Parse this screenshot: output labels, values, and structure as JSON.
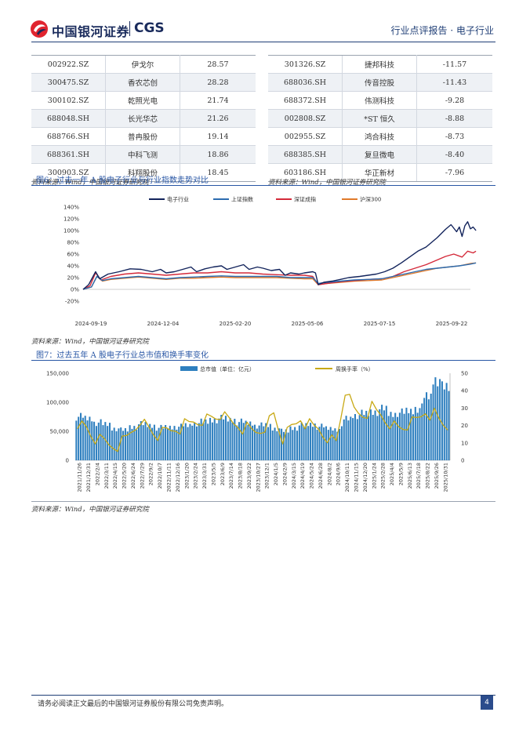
{
  "header": {
    "logo_cn": "中国银河证券",
    "logo_en": "CGS",
    "report_type": "行业点评报告 · 电子行业",
    "brand_color": "#1a2b5c",
    "accent_red": "#e0242f"
  },
  "table_left": {
    "rows": [
      [
        "002922.SZ",
        "伊戈尔",
        "28.57"
      ],
      [
        "300475.SZ",
        "香农芯创",
        "28.28"
      ],
      [
        "300102.SZ",
        "乾照光电",
        "21.74"
      ],
      [
        "688048.SH",
        "长光华芯",
        "21.26"
      ],
      [
        "688766.SH",
        "普冉股份",
        "19.14"
      ],
      [
        "688361.SH",
        "中科飞测",
        "18.86"
      ],
      [
        "300903.SZ",
        "科翔股份",
        "18.45"
      ]
    ]
  },
  "table_right": {
    "rows": [
      [
        "301326.SZ",
        "捷邦科技",
        "-11.57"
      ],
      [
        "688036.SH",
        "传音控股",
        "-11.43"
      ],
      [
        "688372.SH",
        "伟测科技",
        "-9.28"
      ],
      [
        "002808.SZ",
        "*ST 恒久",
        "-8.88"
      ],
      [
        "002955.SZ",
        "鸿合科技",
        "-8.73"
      ],
      [
        "688385.SH",
        "复旦微电",
        "-8.40"
      ],
      [
        "603186.SH",
        "华正新材",
        "-7.96"
      ]
    ]
  },
  "source_note": "资料来源：Wind，中国银河证券研究院",
  "fig6": {
    "title": "图6：过去一年 A 股电子行业与行业指数走势对比"
  },
  "fig7": {
    "title": "图7：过去五年 A 股电子行业总市值和换手率变化"
  },
  "footer": {
    "disclaimer": "请务必阅读正文最后的中国银河证券股份有限公司免责声明。",
    "page_number": "4"
  },
  "chart_data": [
    {
      "type": "line",
      "title": "过去一年 A 股电子行业与行业指数走势对比",
      "x_tick_labels": [
        "2024-09-19",
        "2024-12-04",
        "2025-02-20",
        "2025-05-06",
        "2025-07-15",
        "2025-09-22"
      ],
      "y_tick_labels": [
        "-20%",
        "0%",
        "20%",
        "40%",
        "60%",
        "80%",
        "100%",
        "120%",
        "140%"
      ],
      "ylim": [
        -20,
        140
      ],
      "x_index_range": [
        0,
        280
      ],
      "legend_position": "top",
      "series": [
        {
          "name": "电子行业",
          "color": "#13245c",
          "points": [
            [
              0,
              0
            ],
            [
              4,
              8
            ],
            [
              9,
              30
            ],
            [
              12,
              18
            ],
            [
              18,
              26
            ],
            [
              26,
              30
            ],
            [
              34,
              35
            ],
            [
              42,
              34
            ],
            [
              50,
              30
            ],
            [
              56,
              34
            ],
            [
              60,
              28
            ],
            [
              66,
              30
            ],
            [
              72,
              34
            ],
            [
              78,
              38
            ],
            [
              82,
              30
            ],
            [
              88,
              35
            ],
            [
              94,
              38
            ],
            [
              100,
              40
            ],
            [
              104,
              34
            ],
            [
              110,
              38
            ],
            [
              116,
              42
            ],
            [
              120,
              34
            ],
            [
              126,
              38
            ],
            [
              130,
              36
            ],
            [
              136,
              32
            ],
            [
              142,
              34
            ],
            [
              146,
              24
            ],
            [
              150,
              28
            ],
            [
              156,
              26
            ],
            [
              160,
              28
            ],
            [
              166,
              30
            ],
            [
              168,
              28
            ],
            [
              170,
              8
            ],
            [
              174,
              12
            ],
            [
              180,
              14
            ],
            [
              186,
              17
            ],
            [
              192,
              20
            ],
            [
              200,
              22
            ],
            [
              206,
              24
            ],
            [
              212,
              26
            ],
            [
              218,
              30
            ],
            [
              224,
              36
            ],
            [
              230,
              45
            ],
            [
              236,
              55
            ],
            [
              242,
              65
            ],
            [
              248,
              72
            ],
            [
              252,
              80
            ],
            [
              256,
              88
            ],
            [
              262,
              102
            ],
            [
              266,
              110
            ],
            [
              270,
              98
            ],
            [
              272,
              106
            ],
            [
              274,
              90
            ],
            [
              276,
              108
            ],
            [
              278,
              115
            ],
            [
              280,
              103
            ],
            [
              282,
              106
            ],
            [
              284,
              100
            ]
          ]
        },
        {
          "name": "上证指数",
          "color": "#2c6cb0",
          "points": [
            [
              0,
              0
            ],
            [
              6,
              4
            ],
            [
              10,
              22
            ],
            [
              14,
              15
            ],
            [
              20,
              18
            ],
            [
              30,
              20
            ],
            [
              40,
              22
            ],
            [
              50,
              20
            ],
            [
              60,
              18
            ],
            [
              70,
              20
            ],
            [
              80,
              21
            ],
            [
              90,
              22
            ],
            [
              100,
              23
            ],
            [
              110,
              22
            ],
            [
              120,
              22
            ],
            [
              130,
              22
            ],
            [
              140,
              22
            ],
            [
              150,
              20
            ],
            [
              160,
              20
            ],
            [
              166,
              20
            ],
            [
              170,
              10
            ],
            [
              176,
              12
            ],
            [
              186,
              14
            ],
            [
              196,
              16
            ],
            [
              206,
              17
            ],
            [
              216,
              18
            ],
            [
              224,
              22
            ],
            [
              232,
              26
            ],
            [
              240,
              30
            ],
            [
              248,
              34
            ],
            [
              256,
              36
            ],
            [
              264,
              38
            ],
            [
              272,
              40
            ],
            [
              280,
              43
            ],
            [
              284,
              45
            ]
          ]
        },
        {
          "name": "深证成指",
          "color": "#d42a3a",
          "points": [
            [
              0,
              0
            ],
            [
              5,
              6
            ],
            [
              9,
              28
            ],
            [
              13,
              16
            ],
            [
              20,
              22
            ],
            [
              30,
              26
            ],
            [
              40,
              28
            ],
            [
              50,
              26
            ],
            [
              60,
              24
            ],
            [
              70,
              26
            ],
            [
              80,
              28
            ],
            [
              90,
              28
            ],
            [
              100,
              30
            ],
            [
              110,
              28
            ],
            [
              120,
              28
            ],
            [
              130,
              26
            ],
            [
              140,
              25
            ],
            [
              150,
              24
            ],
            [
              160,
              24
            ],
            [
              166,
              22
            ],
            [
              170,
              8
            ],
            [
              176,
              10
            ],
            [
              186,
              13
            ],
            [
              196,
              15
            ],
            [
              206,
              17
            ],
            [
              216,
              18
            ],
            [
              224,
              22
            ],
            [
              232,
              30
            ],
            [
              240,
              36
            ],
            [
              248,
              42
            ],
            [
              256,
              50
            ],
            [
              262,
              56
            ],
            [
              268,
              60
            ],
            [
              274,
              55
            ],
            [
              278,
              65
            ],
            [
              282,
              62
            ],
            [
              284,
              65
            ]
          ]
        },
        {
          "name": "沪深300",
          "color": "#e07a2a",
          "points": [
            [
              0,
              0
            ],
            [
              6,
              4
            ],
            [
              10,
              22
            ],
            [
              14,
              14
            ],
            [
              20,
              17
            ],
            [
              30,
              19
            ],
            [
              40,
              21
            ],
            [
              50,
              19
            ],
            [
              60,
              17
            ],
            [
              70,
              19
            ],
            [
              80,
              19
            ],
            [
              90,
              20
            ],
            [
              100,
              21
            ],
            [
              110,
              20
            ],
            [
              120,
              20
            ],
            [
              130,
              20
            ],
            [
              140,
              20
            ],
            [
              150,
              19
            ],
            [
              160,
              18
            ],
            [
              166,
              18
            ],
            [
              170,
              8
            ],
            [
              176,
              10
            ],
            [
              186,
              12
            ],
            [
              196,
              14
            ],
            [
              206,
              15
            ],
            [
              216,
              16
            ],
            [
              224,
              20
            ],
            [
              232,
              24
            ],
            [
              240,
              28
            ],
            [
              248,
              32
            ],
            [
              256,
              36
            ],
            [
              264,
              38
            ],
            [
              272,
              40
            ],
            [
              280,
              44
            ],
            [
              284,
              45
            ]
          ]
        }
      ]
    },
    {
      "type": "bar",
      "title": "过去五年 A 股电子行业总市值和换手率变化",
      "legend": [
        "总市值（单位：亿元）",
        "周换手率（%）"
      ],
      "legend_position": "top",
      "y_left_tick_labels": [
        "0",
        "50,000",
        "100,000",
        "150,000"
      ],
      "y_left_lim": [
        0,
        150000
      ],
      "y_right_tick_labels": [
        "0",
        "10",
        "20",
        "30",
        "40",
        "50"
      ],
      "y_right_lim": [
        0,
        50
      ],
      "categories": [
        "2021/11/26",
        "2021/12/31",
        "2022/2/4",
        "2022/3/11",
        "2022/4/15",
        "2022/5/20",
        "2022/6/24",
        "2022/7/29",
        "2022/9/2",
        "2022/10/7",
        "2022/11/11",
        "2022/12/16",
        "2023/1/20",
        "2023/2/24",
        "2023/3/31",
        "2023/5/5",
        "2023/6/9",
        "2023/7/14",
        "2023/8/18",
        "2023/9/22",
        "2023/10/27",
        "2023/12/1",
        "2024/1/5",
        "2024/2/9",
        "2024/3/15",
        "2024/4/19",
        "2024/5/24",
        "2024/6/28",
        "2024/8/2",
        "2024/9/6",
        "2024/10/11",
        "2024/11/15",
        "2024/12/20",
        "2025/1/24",
        "2025/2/28",
        "2025/4/4",
        "2025/5/9",
        "2025/6/13",
        "2025/7/18",
        "2025/8/22",
        "2025/9/26",
        "2025/10/31"
      ],
      "series": [
        {
          "name": "总市值（单位：亿元）",
          "color": "#2e7fbf",
          "values": [
            75000,
            72000,
            65000,
            62000,
            55000,
            52000,
            58000,
            62000,
            60000,
            56000,
            57000,
            58000,
            60000,
            64000,
            66000,
            70000,
            72000,
            70000,
            66000,
            64000,
            60000,
            60000,
            55000,
            50000,
            56000,
            60000,
            62000,
            58000,
            55000,
            54000,
            72000,
            78000,
            80000,
            84000,
            88000,
            80000,
            82000,
            85000,
            90000,
            110000,
            140000,
            125000
          ]
        },
        {
          "name": "周换手率（%）",
          "color": "#c8a915",
          "values": [
            22,
            18,
            12,
            10,
            8,
            10,
            16,
            24,
            18,
            14,
            16,
            18,
            20,
            22,
            24,
            24,
            26,
            22,
            20,
            18,
            16,
            20,
            26,
            12,
            18,
            24,
            20,
            18,
            14,
            10,
            40,
            28,
            26,
            30,
            26,
            22,
            18,
            20,
            22,
            28,
            26,
            20
          ]
        }
      ]
    }
  ]
}
